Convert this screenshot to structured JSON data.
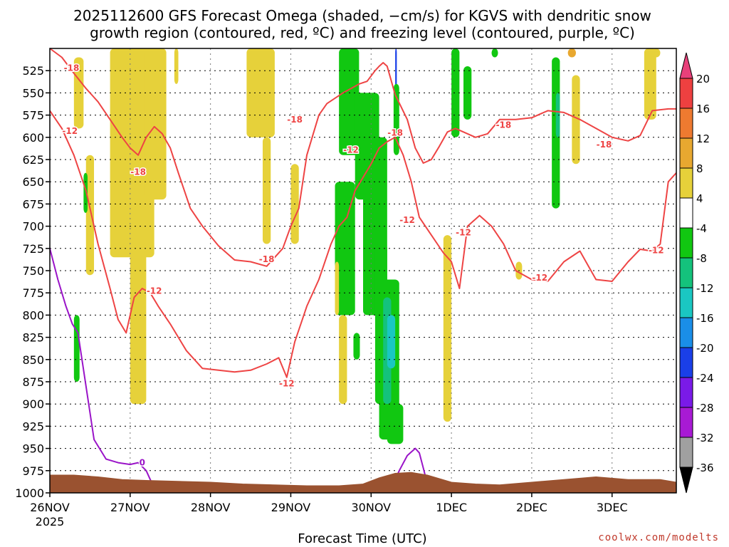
{
  "title_line1": "2025112600 GFS Forecast Omega (shaded, −cm/s) for KGVS with dendritic snow",
  "title_line2": "growth region (contoured, red, ºC) and freezing level (contoured, purple, ºC)",
  "credit": "coolwx.com/modelts",
  "chart_data": {
    "type": "time-height cross section",
    "xlabel": "Forecast Time (UTC)",
    "x_ticks": [
      "26NOV",
      "27NOV",
      "28NOV",
      "29NOV",
      "30NOV",
      "1DEC",
      "2DEC",
      "3DEC"
    ],
    "x_year_label": "2025",
    "xlim_days": [
      0,
      7.8
    ],
    "y_ticks": [
      "525",
      "550",
      "575",
      "600",
      "625",
      "650",
      "675",
      "700",
      "725",
      "750",
      "775",
      "800",
      "825",
      "850",
      "875",
      "900",
      "925",
      "950",
      "975",
      "1000"
    ],
    "y_values": [
      525,
      550,
      575,
      600,
      625,
      650,
      675,
      700,
      725,
      750,
      775,
      800,
      825,
      850,
      875,
      900,
      925,
      950,
      975,
      1000
    ],
    "ylim": [
      500,
      1000
    ],
    "grid": true,
    "colorbar": {
      "labels": [
        "20",
        "16",
        "12",
        "8",
        "4",
        "-4",
        "-8",
        "-12",
        "-16",
        "-20",
        "-24",
        "-28",
        "-32",
        "-36"
      ],
      "colors": [
        "#e8407a",
        "#ee4040",
        "#ee7a30",
        "#e8a830",
        "#e6d13a",
        "#ffffff",
        "#11c711",
        "#14c27c",
        "#1ac7c2",
        "#1a8ee8",
        "#1a3fe8",
        "#7a1ae8",
        "#a81ad4",
        "#a0a0a0",
        "#000000"
      ]
    },
    "contour_labels": [
      {
        "text": "-18",
        "x": 0.27,
        "p": 522
      },
      {
        "text": "-12",
        "x": 0.25,
        "p": 593
      },
      {
        "text": "-18",
        "x": 1.1,
        "p": 639
      },
      {
        "text": "-12",
        "x": 1.3,
        "p": 773
      },
      {
        "text": "-18",
        "x": 2.7,
        "p": 737
      },
      {
        "text": "-12",
        "x": 2.95,
        "p": 877
      },
      {
        "text": "-18",
        "x": 3.05,
        "p": 580
      },
      {
        "text": "-12",
        "x": 3.75,
        "p": 614
      },
      {
        "text": "-18",
        "x": 4.3,
        "p": 595
      },
      {
        "text": "-12",
        "x": 4.45,
        "p": 693
      },
      {
        "text": "-12",
        "x": 5.15,
        "p": 707
      },
      {
        "text": "-18",
        "x": 5.65,
        "p": 586
      },
      {
        "text": "-12",
        "x": 6.1,
        "p": 758
      },
      {
        "text": "-18",
        "x": 6.9,
        "p": 608
      },
      {
        "text": "-12",
        "x": 7.55,
        "p": 727
      },
      {
        "text": "0",
        "x": 1.15,
        "p": 966
      }
    ],
    "series": [
      {
        "name": "-18",
        "color": "#ee4444",
        "x": [
          0,
          0.15,
          0.3,
          0.45,
          0.6,
          0.75,
          0.9,
          1.0,
          1.1,
          1.2,
          1.3,
          1.4,
          1.5,
          1.6,
          1.75,
          1.9,
          2.1,
          2.3,
          2.5,
          2.7,
          2.9,
          3.0,
          3.1,
          3.2,
          3.35,
          3.45,
          3.55,
          3.65,
          3.75,
          3.85,
          3.95,
          4.05,
          4.1,
          4.15,
          4.2,
          4.3,
          4.45,
          4.55,
          4.65,
          4.75,
          4.85,
          4.95,
          5.05,
          5.15,
          5.3,
          5.45,
          5.6,
          5.8,
          6.0,
          6.2,
          6.4,
          6.6,
          6.8,
          7.0,
          7.2,
          7.35,
          7.5,
          7.7,
          7.8
        ],
        "p": [
          500,
          510,
          528,
          545,
          560,
          580,
          600,
          612,
          620,
          600,
          588,
          596,
          612,
          640,
          680,
          700,
          722,
          738,
          740,
          745,
          725,
          700,
          680,
          620,
          575,
          562,
          556,
          550,
          545,
          540,
          537,
          525,
          520,
          516,
          520,
          552,
          580,
          612,
          629,
          625,
          610,
          594,
          590,
          594,
          600,
          596,
          580,
          580,
          578,
          570,
          572,
          580,
          590,
          600,
          604,
          598,
          570,
          568,
          568
        ]
      },
      {
        "name": "-12",
        "color": "#ee4444",
        "x": [
          0,
          0.15,
          0.3,
          0.45,
          0.6,
          0.75,
          0.85,
          0.95,
          1.05,
          1.15,
          1.25,
          1.35,
          1.5,
          1.7,
          1.9,
          2.1,
          2.3,
          2.5,
          2.7,
          2.85,
          2.95,
          3.05,
          3.2,
          3.35,
          3.5,
          3.6,
          3.7,
          3.8,
          3.9,
          4.0,
          4.1,
          4.2,
          4.3,
          4.4,
          4.5,
          4.6,
          4.75,
          4.9,
          5.0,
          5.1,
          5.2,
          5.35,
          5.5,
          5.65,
          5.8,
          6.0,
          6.2,
          6.4,
          6.6,
          6.8,
          7.0,
          7.2,
          7.35,
          7.5,
          7.6,
          7.7,
          7.8
        ],
        "p": [
          570,
          590,
          620,
          660,
          720,
          770,
          805,
          820,
          780,
          770,
          775,
          790,
          810,
          840,
          860,
          862,
          864,
          862,
          855,
          848,
          870,
          830,
          790,
          760,
          720,
          700,
          690,
          660,
          645,
          630,
          612,
          605,
          600,
          620,
          650,
          690,
          710,
          730,
          740,
          770,
          700,
          688,
          700,
          720,
          750,
          760,
          762,
          740,
          728,
          760,
          762,
          740,
          726,
          728,
          720,
          650,
          640
        ]
      },
      {
        "name": "0",
        "color": "#9a14c8",
        "x": [
          0,
          0.1,
          0.2,
          0.28,
          0.35,
          0.45,
          0.55,
          0.7,
          0.85,
          1.0,
          1.1,
          1.2,
          1.3
        ],
        "p": [
          725,
          760,
          790,
          810,
          820,
          880,
          940,
          962,
          966,
          968,
          966,
          975,
          995
        ]
      },
      {
        "name": "0",
        "color": "#9a14c8",
        "x": [
          4.3,
          4.35,
          4.45,
          4.55,
          4.6,
          4.65,
          4.7
        ],
        "p": [
          985,
          975,
          958,
          950,
          955,
          972,
          990
        ]
      }
    ]
  }
}
